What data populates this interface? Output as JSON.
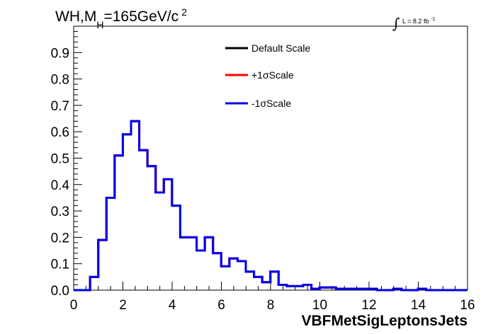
{
  "chart_data": {
    "type": "line",
    "title_main": "WH,M",
    "title_sub": "H",
    "title_rest": "=165GeV/c",
    "title_sup": "2",
    "lumi_label": "L = 8.2 fb",
    "lumi_sup": "-1",
    "xlabel": "VBFMetSigLeptonsJets",
    "xlim": [
      0,
      16
    ],
    "ylim": [
      0,
      1.0
    ],
    "xticks": [
      "0",
      "2",
      "4",
      "6",
      "8",
      "10",
      "12",
      "14",
      "16"
    ],
    "yticks": [
      "0.0",
      "0.1",
      "0.2",
      "0.3",
      "0.4",
      "0.5",
      "0.6",
      "0.7",
      "0.8",
      "0.9"
    ],
    "bin_width": 0.333,
    "bin_edges_start": 0,
    "series": [
      {
        "name": "Default Scale",
        "color": "#000000",
        "values": [
          0,
          0,
          0.05,
          0.19,
          0.35,
          0.51,
          0.59,
          0.64,
          0.53,
          0.47,
          0.37,
          0.42,
          0.32,
          0.2,
          0.2,
          0.15,
          0.2,
          0.14,
          0.09,
          0.12,
          0.11,
          0.07,
          0.05,
          0.03,
          0.07,
          0.02,
          0.015,
          0.015,
          0.02,
          0.005,
          0.01,
          0.01,
          0.005,
          0.005,
          0.005,
          0.005,
          0.005,
          0.0,
          0.0,
          0.005,
          0.0,
          0.0,
          0.005,
          0.0,
          0.0,
          0.0,
          0.0,
          0.0
        ]
      },
      {
        "name": "+1σScale",
        "color": "#ff0000",
        "values": [
          0,
          0,
          0.05,
          0.19,
          0.35,
          0.51,
          0.59,
          0.64,
          0.53,
          0.47,
          0.37,
          0.42,
          0.32,
          0.2,
          0.2,
          0.15,
          0.2,
          0.14,
          0.09,
          0.12,
          0.11,
          0.07,
          0.05,
          0.03,
          0.07,
          0.02,
          0.015,
          0.015,
          0.02,
          0.005,
          0.01,
          0.01,
          0.005,
          0.005,
          0.005,
          0.005,
          0.005,
          0.0,
          0.0,
          0.005,
          0.0,
          0.0,
          0.005,
          0.0,
          0.0,
          0.0,
          0.0,
          0.0
        ]
      },
      {
        "name": "-1σScale",
        "color": "#0000ee",
        "values": [
          0,
          0,
          0.05,
          0.19,
          0.35,
          0.51,
          0.59,
          0.64,
          0.53,
          0.47,
          0.37,
          0.42,
          0.32,
          0.2,
          0.2,
          0.15,
          0.2,
          0.14,
          0.09,
          0.12,
          0.11,
          0.07,
          0.05,
          0.03,
          0.07,
          0.02,
          0.015,
          0.015,
          0.02,
          0.005,
          0.01,
          0.01,
          0.005,
          0.005,
          0.005,
          0.005,
          0.005,
          0.0,
          0.0,
          0.005,
          0.0,
          0.0,
          0.005,
          0.0,
          0.0,
          0.0,
          0.0,
          0.0
        ]
      }
    ],
    "legend_position": "top-center",
    "grid": false
  }
}
